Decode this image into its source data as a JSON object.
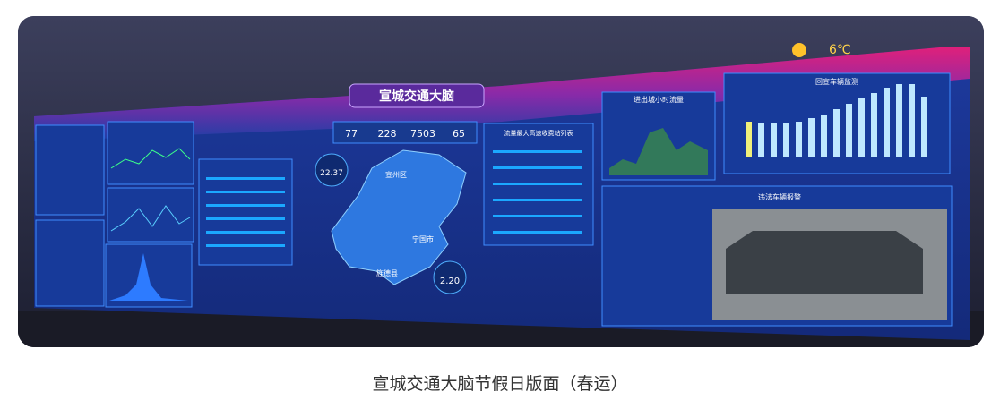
{
  "photo": {
    "title": "宣城交通大脑",
    "weather": "6℃",
    "stats": [
      "77",
      "228",
      "7503",
      "65"
    ],
    "badges": [
      "22.37",
      "2.20"
    ],
    "panels": {
      "toll": "流量最大高速收费站列表",
      "hourly": "进出城小时流量",
      "return": "回宣车辆监测",
      "violation": "违法车辆报警"
    },
    "map_labels": [
      "宣州区",
      "宁国市",
      "旌德县"
    ]
  },
  "caption": "宣城交通大脑节假日版面（春运）"
}
